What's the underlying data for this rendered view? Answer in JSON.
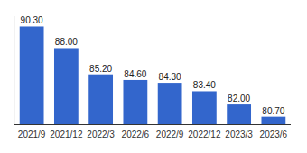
{
  "chart_data": {
    "type": "bar",
    "categories": [
      "2021/9",
      "2021/12",
      "2022/3",
      "2022/6",
      "2022/9",
      "2022/12",
      "2023/3",
      "2023/6"
    ],
    "values": [
      90.3,
      88.0,
      85.2,
      84.6,
      84.3,
      83.4,
      82.0,
      80.7
    ],
    "value_labels": [
      "90.30",
      "88.00",
      "85.20",
      "84.60",
      "84.30",
      "83.40",
      "82.00",
      "80.70"
    ],
    "color": "#3366cc",
    "ylim": [
      79.9,
      91.4
    ],
    "yticks": [],
    "grid": false,
    "data_labels": true,
    "tick_labels": "x"
  }
}
